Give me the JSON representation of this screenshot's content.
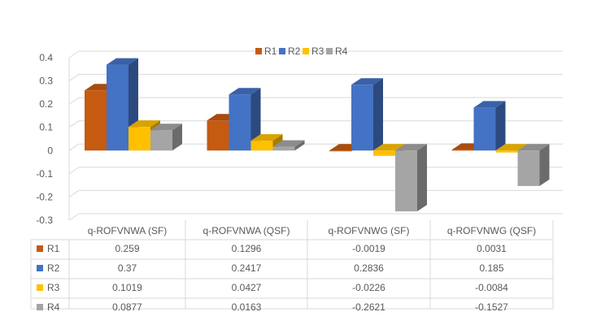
{
  "chart_data": {
    "type": "bar",
    "title": "",
    "xlabel": "",
    "ylabel": "",
    "ylim": [
      -0.3,
      0.4
    ],
    "yticks": [
      "0.4",
      "0.3",
      "0.2",
      "0.1",
      "0",
      "-0.1",
      "-0.2",
      "-0.3"
    ],
    "grid": true,
    "legend_position": "top",
    "categories": [
      "q-ROFVNWA (SF)",
      "q-ROFVNWA (QSF)",
      "q-ROFVNWG (SF)",
      "q-ROFVNWG (QSF)"
    ],
    "series": [
      {
        "name": "R1",
        "color": "#C55A11",
        "values": [
          0.259,
          0.1296,
          -0.0019,
          0.0031
        ],
        "labels": [
          "0.259",
          "0.1296",
          "-0.0019",
          "0.0031"
        ]
      },
      {
        "name": "R2",
        "color": "#4472C4",
        "values": [
          0.37,
          0.2417,
          0.2836,
          0.185
        ],
        "labels": [
          "0.37",
          "0.2417",
          "0.2836",
          "0.185"
        ]
      },
      {
        "name": "R3",
        "color": "#FFC000",
        "values": [
          0.1019,
          0.0427,
          -0.0226,
          -0.0084
        ],
        "labels": [
          "0.1019",
          "0.0427",
          "-0.0226",
          "-0.0084"
        ]
      },
      {
        "name": "R4",
        "color": "#A5A5A5",
        "values": [
          0.0877,
          0.0163,
          -0.2621,
          -0.1527
        ],
        "labels": [
          "0.0877",
          "0.0163",
          "-0.2621",
          "-0.1527"
        ]
      }
    ],
    "data_table": true
  }
}
